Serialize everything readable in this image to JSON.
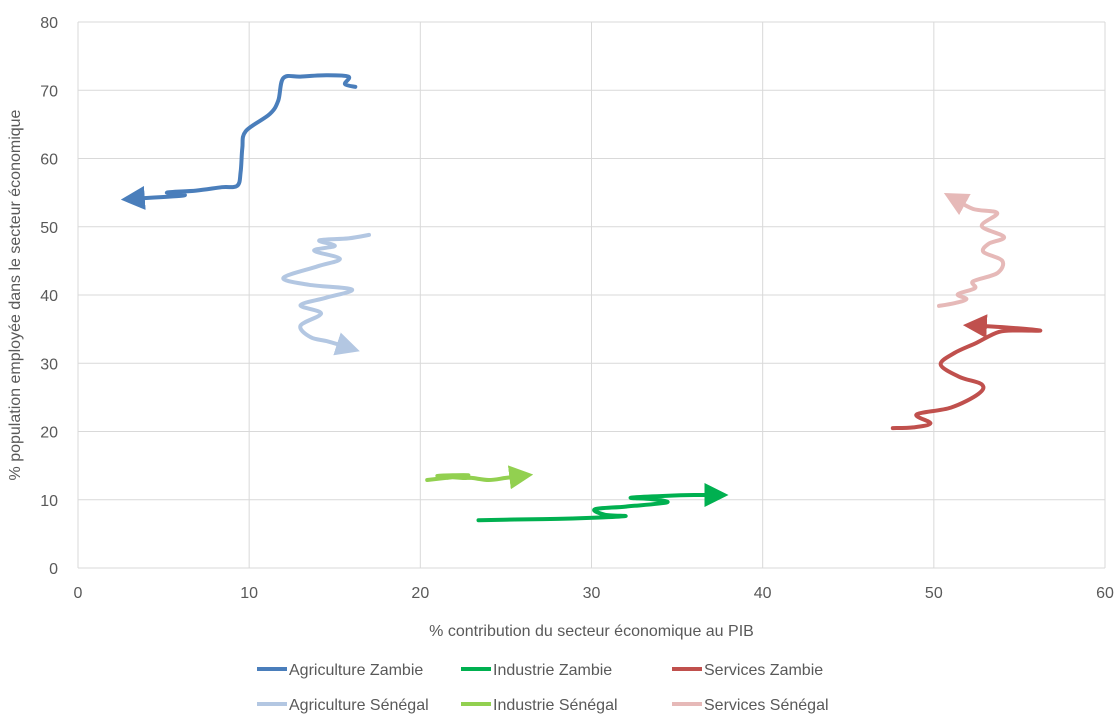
{
  "chart_data": {
    "type": "line",
    "subtype": "connected-scatter-with-arrows",
    "title": "",
    "xlabel": "% contribution du secteur économique au PIB",
    "ylabel": "% population employée dans le secteur économique",
    "xlim": [
      0,
      60
    ],
    "ylim": [
      0,
      80
    ],
    "x_ticks": [
      "0",
      "10",
      "20",
      "30",
      "40",
      "50",
      "60"
    ],
    "y_ticks": [
      "0",
      "10",
      "20",
      "30",
      "40",
      "50",
      "60",
      "70",
      "80"
    ],
    "grid": true,
    "legend_position": "bottom",
    "series": [
      {
        "name": "Agriculture Zambie",
        "color": "#4a7ebb",
        "points": [
          [
            16.2,
            70.5
          ],
          [
            15.6,
            70.9
          ],
          [
            15.8,
            72.0
          ],
          [
            14.5,
            72.2
          ],
          [
            13.0,
            72.0
          ],
          [
            12.0,
            71.8
          ],
          [
            11.7,
            68.5
          ],
          [
            11.2,
            66.5
          ],
          [
            9.8,
            64.0
          ],
          [
            9.6,
            61.5
          ],
          [
            9.5,
            58.0
          ],
          [
            9.3,
            56.0
          ],
          [
            8.4,
            55.8
          ],
          [
            6.9,
            55.3
          ],
          [
            5.2,
            55.0
          ],
          [
            6.2,
            54.6
          ],
          [
            3.2,
            54.1
          ]
        ]
      },
      {
        "name": "Industrie Zambie",
        "color": "#00b050",
        "points": [
          [
            23.4,
            7.0
          ],
          [
            25.5,
            7.1
          ],
          [
            28.0,
            7.2
          ],
          [
            30.5,
            7.4
          ],
          [
            32.0,
            7.6
          ],
          [
            30.8,
            7.8
          ],
          [
            30.2,
            8.6
          ],
          [
            32.0,
            9.0
          ],
          [
            34.4,
            9.6
          ],
          [
            33.5,
            10.1
          ],
          [
            32.3,
            10.3
          ],
          [
            34.5,
            10.6
          ],
          [
            36.0,
            10.7
          ],
          [
            37.3,
            10.7
          ]
        ]
      },
      {
        "name": "Services Zambie",
        "color": "#c0504d",
        "points": [
          [
            47.6,
            20.5
          ],
          [
            48.8,
            20.6
          ],
          [
            49.8,
            21.2
          ],
          [
            49.0,
            22.5
          ],
          [
            51.0,
            23.5
          ],
          [
            52.6,
            25.5
          ],
          [
            52.8,
            26.9
          ],
          [
            51.5,
            28.0
          ],
          [
            50.4,
            29.8
          ],
          [
            51.2,
            31.5
          ],
          [
            52.5,
            33.0
          ],
          [
            53.8,
            34.6
          ],
          [
            55.0,
            34.8
          ],
          [
            56.2,
            34.8
          ],
          [
            54.0,
            35.3
          ],
          [
            52.4,
            35.5
          ]
        ]
      },
      {
        "name": "Agriculture Sénégal",
        "color": "#b3c7e2",
        "points": [
          [
            17.0,
            48.8
          ],
          [
            15.8,
            48.3
          ],
          [
            14.1,
            48.0
          ],
          [
            15.0,
            47.2
          ],
          [
            13.8,
            46.5
          ],
          [
            15.3,
            45.3
          ],
          [
            14.0,
            44.2
          ],
          [
            12.0,
            42.5
          ],
          [
            13.5,
            41.5
          ],
          [
            16.0,
            40.8
          ],
          [
            14.5,
            39.6
          ],
          [
            13.0,
            38.5
          ],
          [
            14.2,
            37.3
          ],
          [
            13.0,
            35.5
          ],
          [
            13.6,
            33.8
          ],
          [
            14.6,
            33.2
          ],
          [
            15.8,
            32.3
          ]
        ]
      },
      {
        "name": "Industrie Sénégal",
        "color": "#92d050",
        "points": [
          [
            20.4,
            12.9
          ],
          [
            21.5,
            13.2
          ],
          [
            22.8,
            13.6
          ],
          [
            21.0,
            13.5
          ],
          [
            22.4,
            13.2
          ],
          [
            23.0,
            13.2
          ],
          [
            24.0,
            12.9
          ],
          [
            25.0,
            13.2
          ],
          [
            25.9,
            13.5
          ]
        ]
      },
      {
        "name": "Services Sénégal",
        "color": "#e6b9b8",
        "points": [
          [
            50.3,
            38.4
          ],
          [
            51.2,
            38.8
          ],
          [
            51.9,
            39.4
          ],
          [
            51.4,
            40.1
          ],
          [
            52.4,
            41.0
          ],
          [
            52.3,
            42.0
          ],
          [
            53.7,
            43.2
          ],
          [
            54.0,
            45.0
          ],
          [
            52.9,
            46.3
          ],
          [
            53.2,
            47.5
          ],
          [
            54.1,
            48.5
          ],
          [
            52.8,
            50.1
          ],
          [
            53.7,
            52.0
          ],
          [
            52.3,
            52.6
          ],
          [
            51.2,
            54.1
          ]
        ]
      }
    ]
  }
}
